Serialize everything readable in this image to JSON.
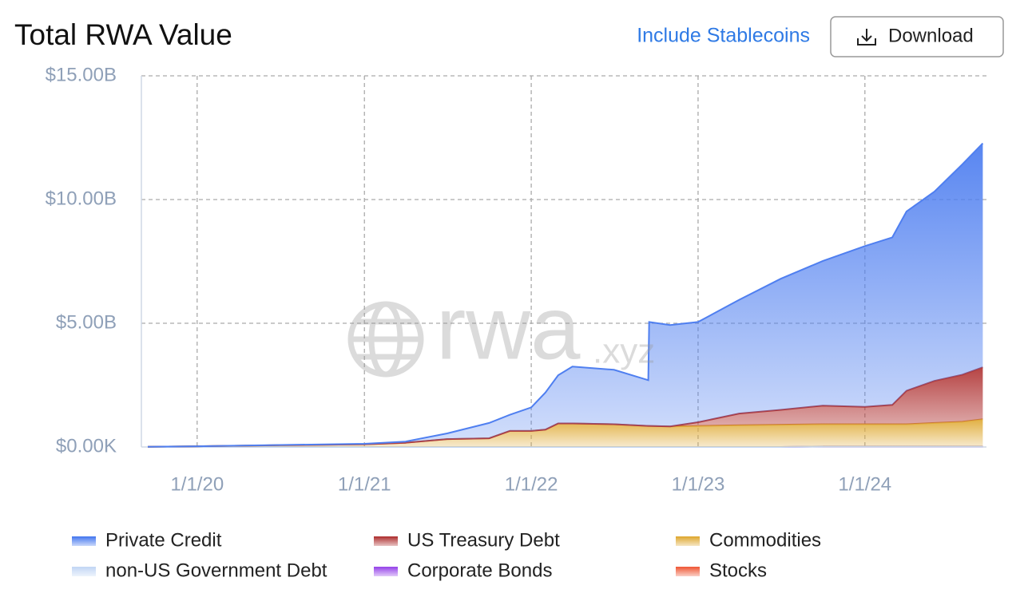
{
  "header": {
    "title": "Total RWA Value",
    "toggle": "Include Stablecoins",
    "button": "Download"
  },
  "chart_data": {
    "type": "stacked-area",
    "watermark": {
      "main": "rwa",
      "suffix": ".xyz"
    },
    "x": [
      "2019-09-15",
      "2020-01-01",
      "2020-07-01",
      "2021-01-01",
      "2021-04-01",
      "2021-07-01",
      "2021-10-01",
      "2021-11-15",
      "2022-01-01",
      "2022-02-01",
      "2022-03-01",
      "2022-04-01",
      "2022-07-01",
      "2022-09-14",
      "2022-09-16",
      "2022-11-01",
      "2023-01-01",
      "2023-04-01",
      "2023-07-01",
      "2023-10-01",
      "2024-01-01",
      "2024-03-01",
      "2024-04-01",
      "2024-06-01",
      "2024-08-01",
      "2024-09-15"
    ],
    "xlim": [
      "2019-09-01",
      "2024-09-23"
    ],
    "xticks": [
      {
        "value": "2020-01-01",
        "label": "1/1/20"
      },
      {
        "value": "2021-01-01",
        "label": "1/1/21"
      },
      {
        "value": "2022-01-01",
        "label": "1/1/22"
      },
      {
        "value": "2023-01-01",
        "label": "1/1/23"
      },
      {
        "value": "2024-01-01",
        "label": "1/1/24"
      }
    ],
    "ylim": [
      0,
      15000000000.0
    ],
    "yticks": [
      {
        "value": 0,
        "label": "$0.00K"
      },
      {
        "value": 5000000000.0,
        "label": "$5.00B"
      },
      {
        "value": 10000000000.0,
        "label": "$10.00B"
      },
      {
        "value": 15000000000.0,
        "label": "$15.00B"
      }
    ],
    "grid": true,
    "legend": "bottom",
    "series": [
      {
        "name": "Private Credit",
        "color": "#4f7ff0",
        "values": [
          0,
          0,
          10000000.0,
          20000000.0,
          50000000.0,
          230000000.0,
          620000000.0,
          650000000.0,
          950000000.0,
          1500000000.0,
          1950000000.0,
          2300000000.0,
          2200000000.0,
          1850000000.0,
          4200000000.0,
          4100000000.0,
          4050000000.0,
          4600000000.0,
          5300000000.0,
          5850000000.0,
          6500000000.0,
          6770000000.0,
          7250000000.0,
          7650000000.0,
          8500000000.0,
          9050000000.0
        ]
      },
      {
        "name": "US Treasury Debt",
        "color": "#b23a3a",
        "values": [
          0,
          0,
          0,
          0,
          0,
          0,
          0,
          0,
          0,
          0,
          0,
          0,
          0,
          0,
          0,
          0,
          150000000.0,
          470000000.0,
          600000000.0,
          750000000.0,
          700000000.0,
          780000000.0,
          1350000000.0,
          1700000000.0,
          1900000000.0,
          2100000000.0
        ]
      },
      {
        "name": "Commodities",
        "color": "#e0ac3a",
        "values": [
          10000000.0,
          30000000.0,
          70000000.0,
          110000000.0,
          170000000.0,
          320000000.0,
          350000000.0,
          650000000.0,
          650000000.0,
          700000000.0,
          950000000.0,
          950000000.0,
          920000000.0,
          850000000.0,
          850000000.0,
          830000000.0,
          850000000.0,
          880000000.0,
          900000000.0,
          900000000.0,
          900000000.0,
          900000000.0,
          900000000.0,
          950000000.0,
          1000000000.0,
          1100000000.0
        ]
      },
      {
        "name": "non-US Government Debt",
        "color": "#c5d8f5",
        "values": [
          0,
          0,
          0,
          0,
          0,
          0,
          0,
          0,
          0,
          0,
          0,
          0,
          0,
          0,
          0,
          0,
          0,
          0,
          0,
          0,
          0,
          0,
          0,
          0,
          0,
          0
        ]
      },
      {
        "name": "Corporate Bonds",
        "color": "#9b4dea",
        "values": [
          0,
          0,
          0,
          0,
          0,
          0,
          0,
          0,
          0,
          0,
          0,
          0,
          0,
          0,
          0,
          0,
          0,
          0,
          0,
          0,
          0,
          0,
          0,
          0,
          0,
          0
        ]
      },
      {
        "name": "Stocks",
        "color": "#f06040",
        "values": [
          null,
          null,
          null,
          null,
          null,
          null,
          null,
          null,
          null,
          null,
          null,
          null,
          null,
          null,
          null,
          null,
          null,
          null,
          null,
          20000000.0,
          20000000.0,
          20000000.0,
          20000000.0,
          20000000.0,
          20000000.0,
          20000000.0
        ]
      }
    ]
  }
}
